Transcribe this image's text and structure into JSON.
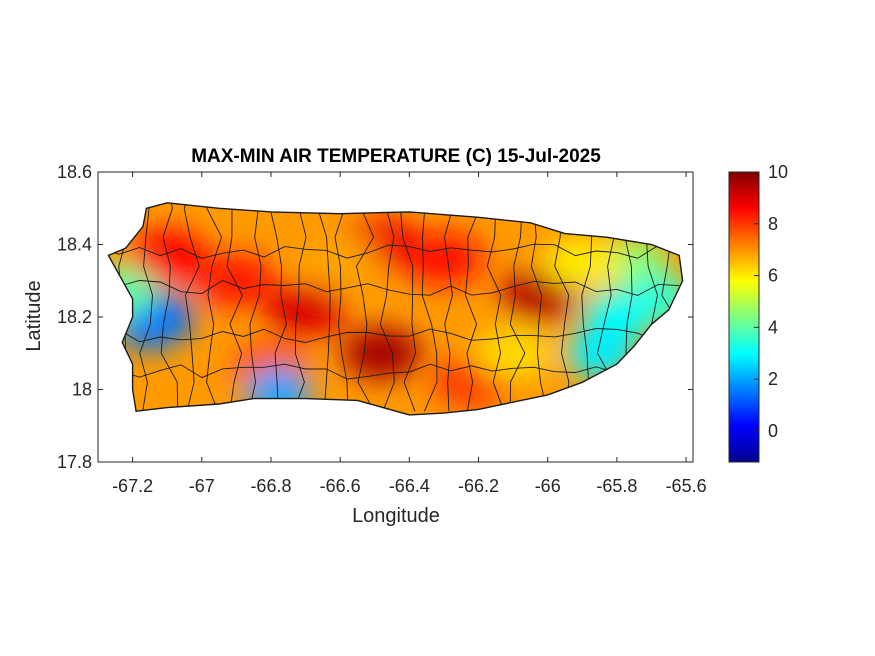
{
  "chart_data": {
    "type": "heatmap",
    "title": "MAX-MIN AIR TEMPERATURE (C) 15-Jul-2025",
    "xlabel": "Longitude",
    "ylabel": "Latitude",
    "xlim": [
      -67.3,
      -65.58
    ],
    "ylim": [
      17.8,
      18.6
    ],
    "x_ticks": [
      -67.2,
      -67,
      -66.8,
      -66.6,
      -66.4,
      -66.2,
      -66,
      -65.8,
      -65.6
    ],
    "x_tick_labels": [
      "-67.2",
      "-67",
      "-66.8",
      "-66.6",
      "-66.4",
      "-66.2",
      "-66",
      "-65.8",
      "-65.6"
    ],
    "y_ticks": [
      17.8,
      18,
      18.2,
      18.4,
      18.6
    ],
    "y_tick_labels": [
      "17.8",
      "18",
      "18.2",
      "18.4",
      "18.6"
    ],
    "colorbar": {
      "colormap": "jet",
      "range": [
        -1.2,
        10
      ],
      "ticks": [
        0,
        2,
        4,
        6,
        8,
        10
      ],
      "tick_labels": [
        "0",
        "2",
        "4",
        "6",
        "8",
        "10"
      ]
    },
    "island_outline": [
      [
        -67.27,
        18.37
      ],
      [
        -67.22,
        18.39
      ],
      [
        -67.17,
        18.45
      ],
      [
        -67.16,
        18.5
      ],
      [
        -67.1,
        18.515
      ],
      [
        -66.95,
        18.5
      ],
      [
        -66.8,
        18.49
      ],
      [
        -66.6,
        18.485
      ],
      [
        -66.4,
        18.49
      ],
      [
        -66.2,
        18.475
      ],
      [
        -66.05,
        18.46
      ],
      [
        -65.95,
        18.43
      ],
      [
        -65.83,
        18.42
      ],
      [
        -65.7,
        18.4
      ],
      [
        -65.62,
        18.37
      ],
      [
        -65.61,
        18.3
      ],
      [
        -65.65,
        18.22
      ],
      [
        -65.7,
        18.18
      ],
      [
        -65.75,
        18.12
      ],
      [
        -65.8,
        18.07
      ],
      [
        -65.9,
        18.02
      ],
      [
        -66.0,
        17.985
      ],
      [
        -66.2,
        17.945
      ],
      [
        -66.3,
        17.935
      ],
      [
        -66.4,
        17.93
      ],
      [
        -66.55,
        17.97
      ],
      [
        -66.7,
        17.975
      ],
      [
        -66.85,
        17.975
      ],
      [
        -66.95,
        17.96
      ],
      [
        -67.1,
        17.95
      ],
      [
        -67.19,
        17.94
      ],
      [
        -67.2,
        18.0
      ],
      [
        -67.2,
        18.07
      ],
      [
        -67.23,
        18.13
      ],
      [
        -67.2,
        18.2
      ],
      [
        -67.2,
        18.25
      ],
      [
        -67.27,
        18.37
      ]
    ],
    "field_hotspots": [
      {
        "lon": -66.48,
        "lat": 18.1,
        "value": 9.6
      },
      {
        "lon": -66.02,
        "lat": 18.26,
        "value": 9.4
      },
      {
        "lon": -66.7,
        "lat": 18.22,
        "value": 9.0
      },
      {
        "lon": -66.48,
        "lat": 18.4,
        "value": 8.8
      },
      {
        "lon": -66.9,
        "lat": 18.3,
        "value": 8.4
      },
      {
        "lon": -67.1,
        "lat": 18.37,
        "value": 8.6
      },
      {
        "lon": -66.3,
        "lat": 18.36,
        "value": 8.5
      },
      {
        "lon": -66.22,
        "lat": 18.02,
        "value": 8.0
      },
      {
        "lon": -66.8,
        "lat": 18.06,
        "value": 7.8
      },
      {
        "lon": -67.12,
        "lat": 18.2,
        "value": 1.2
      },
      {
        "lon": -67.15,
        "lat": 18.18,
        "value": 1.5
      },
      {
        "lon": -66.78,
        "lat": 17.99,
        "value": 2.0
      },
      {
        "lon": -67.23,
        "lat": 18.27,
        "value": 4.0
      },
      {
        "lon": -65.75,
        "lat": 18.35,
        "value": 4.5
      },
      {
        "lon": -65.68,
        "lat": 18.25,
        "value": 3.5
      },
      {
        "lon": -65.8,
        "lat": 18.2,
        "value": 3.0
      },
      {
        "lon": -65.85,
        "lat": 18.1,
        "value": 2.8
      },
      {
        "lon": -66.1,
        "lat": 18.1,
        "value": 6.2
      },
      {
        "lon": -66.6,
        "lat": 18.35,
        "value": 6.8
      },
      {
        "lon": -65.9,
        "lat": 18.35,
        "value": 6.0
      }
    ]
  }
}
